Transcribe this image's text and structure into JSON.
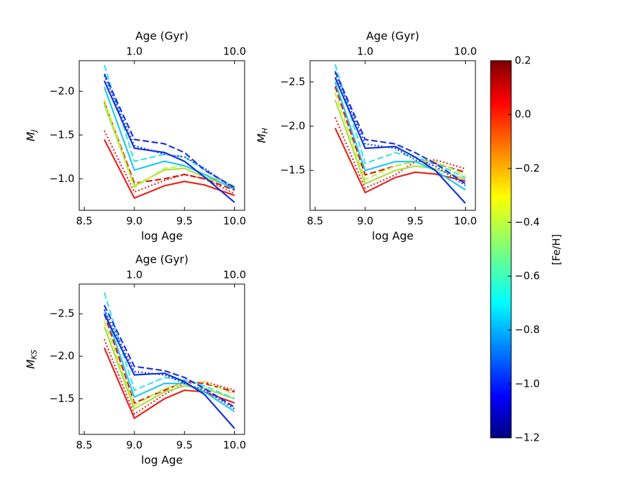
{
  "chart_data": [
    {
      "type": "line",
      "xlabel": "log Age",
      "top_xlabel": "Age (Gyr)",
      "ylabel": "M",
      "ylabel_sub": "J",
      "x": [
        8.7,
        9.0,
        9.3,
        9.5,
        9.7,
        10.0
      ],
      "xlim": [
        8.45,
        10.1
      ],
      "xticks": [
        8.5,
        {
          "value": 9,
          "label": "9.0"
        },
        9.5,
        {
          "value": 10,
          "label": "10.0"
        }
      ],
      "top_xticks": [
        {
          "value": 9,
          "label": "1.0"
        },
        {
          "value": 10,
          "label": "10.0"
        }
      ],
      "ylim": [
        -0.64,
        -2.35
      ],
      "yticks": [
        {
          "value": -2,
          "label": "−2.0"
        },
        {
          "value": -1.5,
          "label": "−1.5"
        },
        {
          "value": -1,
          "label": "−1.0"
        }
      ],
      "series": [
        {
          "color": "#e8221c",
          "dash": "solid",
          "values": [
            -1.45,
            -0.78,
            -0.92,
            -0.97,
            -0.93,
            -0.81
          ]
        },
        {
          "color": "#e8221c",
          "dash": "dotted",
          "values": [
            -1.55,
            -0.85,
            -0.98,
            -1.05,
            -1.0,
            -0.83
          ]
        },
        {
          "color": "#d01812",
          "dash": "dashed",
          "values": [
            -1.88,
            -0.95,
            -1.0,
            -1.05,
            -1.0,
            -0.87
          ]
        },
        {
          "color": "#a8e04a",
          "dash": "solid",
          "values": [
            -1.85,
            -0.92,
            -1.1,
            -1.12,
            -1.02,
            -0.9
          ]
        },
        {
          "color": "#c8f040",
          "dash": "dashed",
          "values": [
            -1.9,
            -0.9,
            -1.12,
            -1.15,
            -1.05,
            -0.92
          ]
        },
        {
          "color": "#20c8f0",
          "dash": "solid",
          "values": [
            -2.05,
            -1.1,
            -1.2,
            -1.15,
            -1.05,
            -0.88
          ]
        },
        {
          "color": "#3ce0f0",
          "dash": "dashed",
          "values": [
            -2.3,
            -1.2,
            -1.28,
            -1.25,
            -1.1,
            -0.9
          ]
        },
        {
          "color": "#1030d8",
          "dash": "solid",
          "values": [
            -2.12,
            -1.35,
            -1.3,
            -1.2,
            -1.02,
            -0.73
          ]
        },
        {
          "color": "#1a30e0",
          "dash": "dashed",
          "values": [
            -2.2,
            -1.45,
            -1.4,
            -1.3,
            -1.1,
            -0.9
          ]
        },
        {
          "color": "#2040e8",
          "dash": "dotted",
          "values": [
            -2.18,
            -1.38,
            -1.28,
            -1.25,
            -1.12,
            -0.88
          ]
        }
      ]
    },
    {
      "type": "line",
      "xlabel": "log Age",
      "top_xlabel": "Age (Gyr)",
      "ylabel": "M",
      "ylabel_sub": "H",
      "x": [
        8.7,
        9.0,
        9.3,
        9.5,
        9.7,
        10.0
      ],
      "xlim": [
        8.45,
        10.1
      ],
      "xticks": [
        8.5,
        {
          "value": 9,
          "label": "9.0"
        },
        9.5,
        {
          "value": 10,
          "label": "10.0"
        }
      ],
      "top_xticks": [
        {
          "value": 9,
          "label": "1.0"
        },
        {
          "value": 10,
          "label": "10.0"
        }
      ],
      "ylim": [
        -1.05,
        -2.74
      ],
      "yticks": [
        {
          "value": -2.5,
          "label": "−2.5"
        },
        {
          "value": -2,
          "label": "−2.0"
        },
        {
          "value": -1.5,
          "label": "−1.5"
        }
      ],
      "series": [
        {
          "color": "#e8221c",
          "dash": "solid",
          "values": [
            -1.98,
            -1.25,
            -1.42,
            -1.48,
            -1.46,
            -1.38
          ]
        },
        {
          "color": "#e8221c",
          "dash": "dotted",
          "values": [
            -2.1,
            -1.3,
            -1.45,
            -1.6,
            -1.62,
            -1.52
          ]
        },
        {
          "color": "#d01812",
          "dash": "dashed",
          "values": [
            -2.45,
            -1.45,
            -1.55,
            -1.6,
            -1.58,
            -1.48
          ]
        },
        {
          "color": "#a8e04a",
          "dash": "solid",
          "values": [
            -2.3,
            -1.35,
            -1.5,
            -1.55,
            -1.52,
            -1.4
          ]
        },
        {
          "color": "#c8f040",
          "dash": "dashed",
          "values": [
            -2.38,
            -1.4,
            -1.55,
            -1.6,
            -1.6,
            -1.45
          ]
        },
        {
          "color": "#20c8f0",
          "dash": "solid",
          "values": [
            -2.5,
            -1.5,
            -1.6,
            -1.6,
            -1.5,
            -1.28
          ]
        },
        {
          "color": "#3ce0f0",
          "dash": "dashed",
          "values": [
            -2.7,
            -1.58,
            -1.7,
            -1.65,
            -1.58,
            -1.42
          ]
        },
        {
          "color": "#1030d8",
          "dash": "solid",
          "values": [
            -2.55,
            -1.75,
            -1.77,
            -1.65,
            -1.5,
            -1.13
          ]
        },
        {
          "color": "#1a30e0",
          "dash": "dashed",
          "values": [
            -2.62,
            -1.85,
            -1.8,
            -1.7,
            -1.58,
            -1.35
          ]
        },
        {
          "color": "#2040e8",
          "dash": "dotted",
          "values": [
            -2.6,
            -1.8,
            -1.75,
            -1.62,
            -1.55,
            -1.33
          ]
        }
      ]
    },
    {
      "type": "line",
      "xlabel": "log Age",
      "top_xlabel": "Age (Gyr)",
      "ylabel": "M",
      "ylabel_sub": "KS",
      "x": [
        8.7,
        9.0,
        9.3,
        9.5,
        9.7,
        10.0
      ],
      "xlim": [
        8.45,
        10.1
      ],
      "xticks": [
        8.5,
        {
          "value": 9,
          "label": "9.0"
        },
        9.5,
        {
          "value": 10,
          "label": "10.0"
        }
      ],
      "top_xticks": [
        {
          "value": 9,
          "label": "1.0"
        },
        {
          "value": 10,
          "label": "10.0"
        }
      ],
      "ylim": [
        -1.08,
        -2.85
      ],
      "yticks": [
        {
          "value": -2.5,
          "label": "−2.5"
        },
        {
          "value": -2,
          "label": "−2.0"
        },
        {
          "value": -1.5,
          "label": "−1.5"
        }
      ],
      "series": [
        {
          "color": "#e8221c",
          "dash": "solid",
          "values": [
            -2.1,
            -1.27,
            -1.5,
            -1.6,
            -1.58,
            -1.45
          ]
        },
        {
          "color": "#e8221c",
          "dash": "dotted",
          "values": [
            -2.2,
            -1.32,
            -1.55,
            -1.68,
            -1.7,
            -1.6
          ]
        },
        {
          "color": "#d01812",
          "dash": "dashed",
          "values": [
            -2.5,
            -1.45,
            -1.6,
            -1.7,
            -1.68,
            -1.58
          ]
        },
        {
          "color": "#a8e04a",
          "dash": "solid",
          "values": [
            -2.35,
            -1.38,
            -1.58,
            -1.65,
            -1.62,
            -1.5
          ]
        },
        {
          "color": "#c8f040",
          "dash": "dashed",
          "values": [
            -2.42,
            -1.42,
            -1.62,
            -1.68,
            -1.7,
            -1.55
          ]
        },
        {
          "color": "#20c8f0",
          "dash": "solid",
          "values": [
            -2.55,
            -1.52,
            -1.68,
            -1.68,
            -1.58,
            -1.35
          ]
        },
        {
          "color": "#3ce0f0",
          "dash": "dashed",
          "values": [
            -2.75,
            -1.6,
            -1.75,
            -1.72,
            -1.65,
            -1.5
          ]
        },
        {
          "color": "#1030d8",
          "dash": "solid",
          "values": [
            -2.5,
            -1.78,
            -1.8,
            -1.7,
            -1.55,
            -1.15
          ]
        },
        {
          "color": "#1a30e0",
          "dash": "dashed",
          "values": [
            -2.6,
            -1.88,
            -1.83,
            -1.75,
            -1.62,
            -1.4
          ]
        },
        {
          "color": "#2040e8",
          "dash": "dotted",
          "values": [
            -2.55,
            -1.82,
            -1.78,
            -1.68,
            -1.6,
            -1.38
          ]
        }
      ]
    }
  ],
  "colorbar": {
    "label": "[Fe/H]",
    "colormap": "jet",
    "lim": [
      -1.2,
      0.2
    ],
    "ticks": [
      0.2,
      {
        "value": 0,
        "label": "0.0"
      },
      {
        "value": -0.2,
        "label": "−0.2"
      },
      {
        "value": -0.4,
        "label": "−0.4"
      },
      {
        "value": -0.6,
        "label": "−0.6"
      },
      {
        "value": -0.8,
        "label": "−0.8"
      },
      {
        "value": -1,
        "label": "−1.0"
      },
      {
        "value": -1.2,
        "label": "−1.2"
      }
    ]
  }
}
